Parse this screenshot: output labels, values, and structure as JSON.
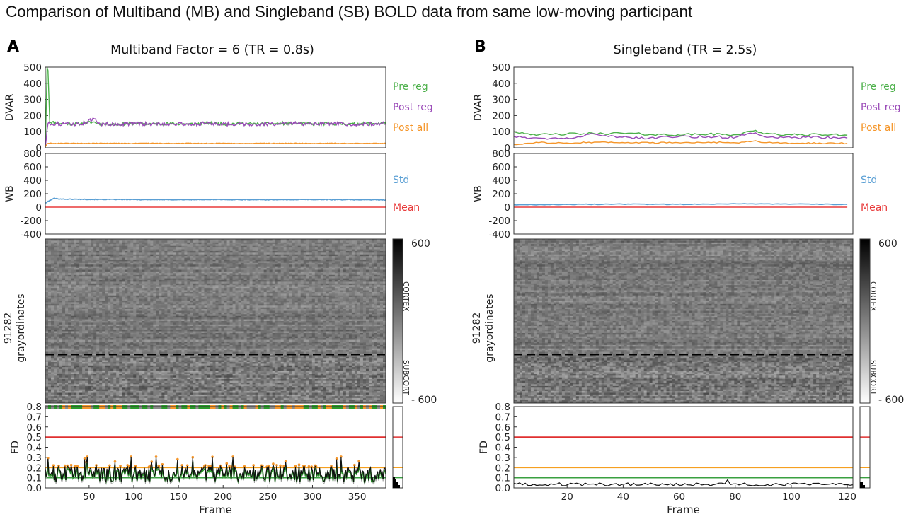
{
  "figure_title": "Comparison of Multiband (MB) and Singleband (SB) BOLD data from same low-moving participant",
  "colors": {
    "pre_reg": "#4cb04a",
    "post_reg": "#9a4ab8",
    "post_all": "#f5962a",
    "std": "#5a9fd4",
    "mean": "#e83a3a",
    "fd_threshold_red": "#e03030",
    "fd_threshold_orange": "#f5a020",
    "fd_threshold_green": "#3aa040",
    "fd_trace": "#111111",
    "fd_filtered": "#2a9a2a"
  },
  "panels": [
    {
      "letter": "A",
      "title": "Multiband Factor = 6 (TR = 0.8s)",
      "chart_data": [
        {
          "type": "line",
          "ylabel": "DVAR",
          "ylim": [
            0,
            500
          ],
          "yticks": [
            "500",
            "400",
            "300",
            "200",
            "100",
            "0"
          ],
          "legend": [
            "Pre reg",
            "Post reg",
            "Post all"
          ],
          "x": [
            1,
            3,
            4,
            6,
            20,
            40,
            56,
            60,
            80,
            100,
            120,
            140,
            160,
            180,
            200,
            220,
            240,
            260,
            280,
            300,
            320,
            340,
            360,
            380,
            382
          ],
          "series": [
            {
              "name": "Pre reg",
              "values": [
                5,
                500,
                480,
                160,
                150,
                148,
                160,
                150,
                145,
                152,
                148,
                150,
                146,
                152,
                148,
                150,
                147,
                150,
                152,
                148,
                150,
                146,
                150,
                152,
                148
              ]
            },
            {
              "name": "Post reg",
              "values": [
                5,
                110,
                150,
                150,
                148,
                146,
                180,
                148,
                145,
                150,
                146,
                148,
                145,
                150,
                146,
                148,
                145,
                148,
                150,
                146,
                148,
                145,
                148,
                150,
                147
              ]
            },
            {
              "name": "Post all",
              "values": [
                5,
                25,
                27,
                28,
                28,
                27,
                28,
                27,
                28,
                27,
                28,
                27,
                28,
                27,
                28,
                27,
                28,
                27,
                28,
                27,
                28,
                27,
                28,
                27,
                28
              ]
            }
          ]
        },
        {
          "type": "line",
          "ylabel": "WB",
          "ylim": [
            -400,
            800
          ],
          "yticks": [
            "800",
            "600",
            "400",
            "200",
            "0",
            "-200",
            "-400"
          ],
          "legend": [
            "Std",
            "Mean"
          ],
          "x": [
            1,
            10,
            20,
            50,
            100,
            150,
            200,
            250,
            300,
            350,
            382
          ],
          "series": [
            {
              "name": "Std",
              "values": [
                60,
                130,
                120,
                115,
                112,
                110,
                112,
                110,
                113,
                110,
                108
              ]
            },
            {
              "name": "Mean",
              "values": [
                0,
                0,
                0,
                0,
                0,
                0,
                0,
                0,
                0,
                0,
                0
              ]
            }
          ]
        },
        {
          "type": "heatmap",
          "ylabel": "91282\ngrayordinates",
          "colorbar": {
            "max": "600",
            "min": "- 600",
            "labels": [
              "CORTEX",
              "SUBCORT"
            ]
          }
        },
        {
          "type": "line",
          "ylabel": "FD",
          "xlabel": "Frame",
          "ylim": [
            0,
            0.8
          ],
          "yticks": [
            "0.8",
            "0.7",
            "0.6",
            "0.5",
            "0.4",
            "0.3",
            "0.2",
            "0.1",
            "0.0"
          ],
          "xticks": [
            "50",
            "100",
            "150",
            "200",
            "250",
            "300",
            "350"
          ],
          "xrange": [
            1,
            382
          ],
          "thresholds": [
            0.5,
            0.2,
            0.1
          ],
          "fd_summary": {
            "mean": 0.13,
            "peak": 0.3
          }
        }
      ]
    },
    {
      "letter": "B",
      "title": "Singleband (TR = 2.5s)",
      "chart_data": [
        {
          "type": "line",
          "ylabel": "DVAR",
          "ylim": [
            0,
            500
          ],
          "yticks": [
            "500",
            "400",
            "300",
            "200",
            "100",
            "0"
          ],
          "legend": [
            "Pre reg",
            "Post reg",
            "Post all"
          ],
          "x": [
            1,
            10,
            20,
            30,
            40,
            50,
            60,
            70,
            80,
            87,
            90,
            100,
            110,
            120
          ],
          "series": [
            {
              "name": "Pre reg",
              "values": [
                100,
                80,
                85,
                88,
                90,
                82,
                80,
                85,
                80,
                110,
                85,
                80,
                82,
                78
              ]
            },
            {
              "name": "Post reg",
              "values": [
                70,
                60,
                62,
                85,
                65,
                62,
                68,
                70,
                65,
                95,
                70,
                62,
                65,
                60
              ]
            },
            {
              "name": "Post all",
              "values": [
                20,
                32,
                30,
                35,
                33,
                30,
                32,
                35,
                30,
                45,
                32,
                28,
                30,
                28
              ]
            }
          ]
        },
        {
          "type": "line",
          "ylabel": "WB",
          "ylim": [
            -400,
            800
          ],
          "yticks": [
            "800",
            "600",
            "400",
            "200",
            "0",
            "-200",
            "-400"
          ],
          "legend": [
            "Std",
            "Mean"
          ],
          "x": [
            1,
            20,
            40,
            60,
            80,
            100,
            120
          ],
          "series": [
            {
              "name": "Std",
              "values": [
                35,
                40,
                45,
                42,
                50,
                45,
                40
              ]
            },
            {
              "name": "Mean",
              "values": [
                0,
                0,
                0,
                0,
                0,
                0,
                0
              ]
            }
          ]
        },
        {
          "type": "heatmap",
          "ylabel": "91282\ngrayordinates",
          "colorbar": {
            "max": "600",
            "min": "- 600",
            "labels": [
              "CORTEX",
              "SUBCORT"
            ]
          }
        },
        {
          "type": "line",
          "ylabel": "FD",
          "xlabel": "Frame",
          "ylim": [
            0,
            0.8
          ],
          "yticks": [
            "0.8",
            "0.7",
            "0.6",
            "0.5",
            "0.4",
            "0.3",
            "0.2",
            "0.1",
            "0.0"
          ],
          "xticks": [
            "20",
            "40",
            "60",
            "80",
            "100",
            "120"
          ],
          "xrange": [
            1,
            122
          ],
          "thresholds": [
            0.5,
            0.2,
            0.1
          ],
          "fd_summary": {
            "mean": 0.035,
            "peak": 0.08
          }
        }
      ]
    }
  ]
}
